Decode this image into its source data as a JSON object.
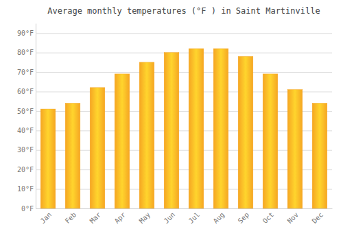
{
  "chart_data": {
    "type": "bar",
    "title": "Average monthly temperatures (°F ) in Saint Martinville",
    "categories": [
      "Jan",
      "Feb",
      "Mar",
      "Apr",
      "May",
      "Jun",
      "Jul",
      "Aug",
      "Sep",
      "Oct",
      "Nov",
      "Dec"
    ],
    "values": [
      51,
      54,
      62,
      69,
      75,
      80,
      82,
      82,
      78,
      69,
      61,
      54
    ],
    "color": "#F5A623",
    "ylim": [
      0,
      95
    ],
    "yticks": [
      {
        "value": 0,
        "label": "0°F"
      },
      {
        "value": 10,
        "label": "10°F"
      },
      {
        "value": 20,
        "label": "20°F"
      },
      {
        "value": 30,
        "label": "30°F"
      },
      {
        "value": 40,
        "label": "40°F"
      },
      {
        "value": 50,
        "label": "50°F"
      },
      {
        "value": 60,
        "label": "60°F"
      },
      {
        "value": 70,
        "label": "70°F"
      },
      {
        "value": 80,
        "label": "80°F"
      },
      {
        "value": 90,
        "label": "90°F"
      }
    ],
    "grid": true
  }
}
